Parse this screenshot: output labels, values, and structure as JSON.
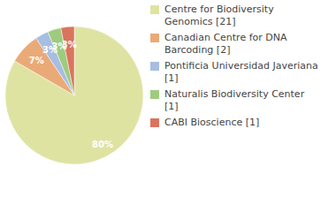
{
  "chart_data": {
    "type": "pie",
    "categories": [
      "Centre for Biodiversity Genomics [21]",
      "Canadian Centre for DNA Barcoding [2]",
      "Pontificia Universidad Javeriana [1]",
      "Naturalis Biodiversity Center [1]",
      "CABI Bioscience [1]"
    ],
    "values": [
      80,
      7,
      3,
      3,
      3
    ],
    "value_labels": [
      "80%",
      "7%",
      "3%",
      "3%",
      "3%"
    ],
    "colors": [
      "#dfe3a2",
      "#eaaa78",
      "#a8bde2",
      "#9fcb7e",
      "#da745e"
    ],
    "data_labels": true,
    "legend": "right"
  }
}
